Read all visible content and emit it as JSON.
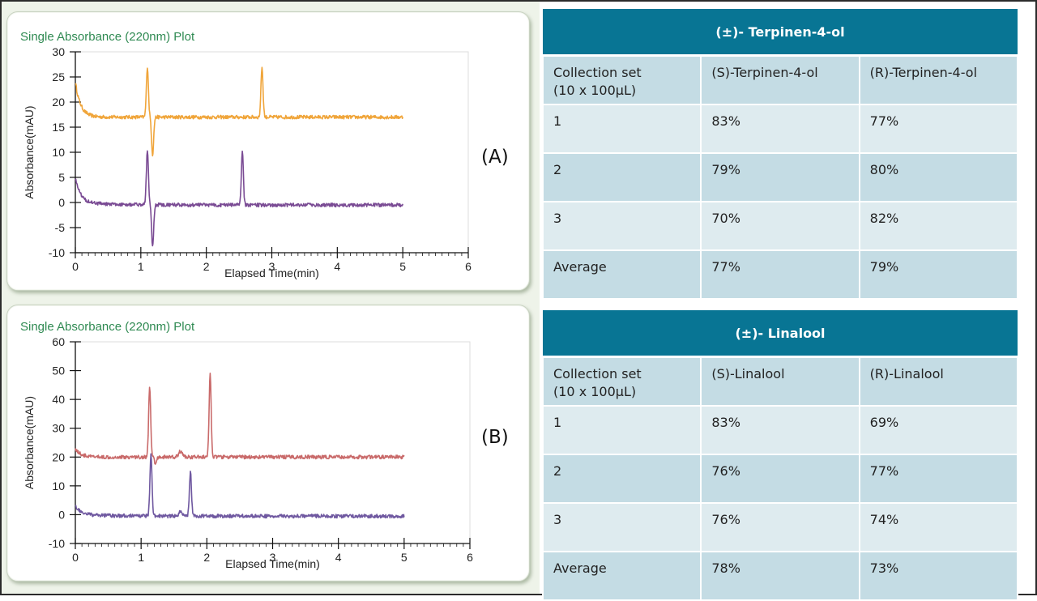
{
  "panels": [
    {
      "id": "A",
      "label": "(A)",
      "chart_title": "Single Absorbance (220nm) Plot"
    },
    {
      "id": "B",
      "label": "(B)",
      "chart_title": "Single Absorbance (220nm) Plot"
    }
  ],
  "chart_data": [
    {
      "type": "line",
      "title": "Single Absorbance (220nm) Plot",
      "xlabel": "Elapsed Time(min)",
      "ylabel": "Absorbance(mAU)",
      "xlim": [
        0,
        6
      ],
      "ylim": [
        -10,
        30
      ],
      "xticks": [
        0,
        1,
        2,
        3,
        4,
        5,
        6
      ],
      "yticks": [
        -10,
        -5,
        0,
        5,
        10,
        15,
        20,
        25,
        30
      ],
      "grid": false,
      "legend": "none",
      "series": [
        {
          "name": "trace-orange",
          "color": "#f0a53a",
          "baseline": 17,
          "start_value": 24,
          "decay_to": 17,
          "features": [
            {
              "type": "peak",
              "x": 1.1,
              "y": 27
            },
            {
              "type": "dip",
              "x": 1.18,
              "y": 9.5
            },
            {
              "type": "peak",
              "x": 2.85,
              "y": 27
            }
          ],
          "x_end": 5.0,
          "end_value": 17
        },
        {
          "name": "trace-purple",
          "color": "#7a4b94",
          "baseline": -0.5,
          "start_value": 5,
          "decay_to": 0,
          "features": [
            {
              "type": "peak",
              "x": 1.1,
              "y": 10.5
            },
            {
              "type": "dip",
              "x": 1.18,
              "y": -8.8
            },
            {
              "type": "peak",
              "x": 2.55,
              "y": 10
            }
          ],
          "x_end": 5.0,
          "end_value": -0.5
        }
      ]
    },
    {
      "type": "line",
      "title": "Single Absorbance (220nm) Plot",
      "xlabel": "Elapsed Time(min)",
      "ylabel": "Absorbance(mAU)",
      "xlim": [
        0,
        6
      ],
      "ylim": [
        -10,
        60
      ],
      "xticks": [
        0,
        1,
        2,
        3,
        4,
        5,
        6
      ],
      "yticks": [
        -10,
        0,
        10,
        20,
        30,
        40,
        50,
        60
      ],
      "grid": false,
      "legend": "none",
      "series": [
        {
          "name": "trace-red",
          "color": "#c96a6a",
          "baseline": 20,
          "start_value": 23,
          "decay_to": 20,
          "features": [
            {
              "type": "peak",
              "x": 1.13,
              "y": 44
            },
            {
              "type": "dip",
              "x": 1.22,
              "y": 17.5
            },
            {
              "type": "bump",
              "x": 1.6,
              "y": 22
            },
            {
              "type": "peak",
              "x": 2.05,
              "y": 48.5
            }
          ],
          "x_end": 5.0,
          "end_value": 20.5
        },
        {
          "name": "trace-blue-purple",
          "color": "#6f58a0",
          "baseline": -0.5,
          "start_value": 3,
          "decay_to": 0,
          "features": [
            {
              "type": "peak",
              "x": 1.15,
              "y": 21.5
            },
            {
              "type": "bump",
              "x": 1.6,
              "y": 1
            },
            {
              "type": "peak",
              "x": 1.75,
              "y": 15
            }
          ],
          "x_end": 5.0,
          "end_value": -0.5
        }
      ]
    }
  ],
  "tables": [
    {
      "title": "(±)- Terpinen-4-ol",
      "columns": [
        "Collection set\n(10 x 100µL)",
        "(S)-Terpinen-4-ol",
        "(R)-Terpinen-4-ol"
      ],
      "header_line1": "Collection set",
      "header_line2": "(10 x 100µL)",
      "rows": [
        [
          "1",
          "83%",
          "77%"
        ],
        [
          "2",
          "79%",
          "80%"
        ],
        [
          "3",
          "70%",
          "82%"
        ],
        [
          "Average",
          "77%",
          "79%"
        ]
      ]
    },
    {
      "title": "(±)- Linalool",
      "header_line1": "Collection set",
      "header_line2": "(10 x 100µL)",
      "columns": [
        "Collection set\n(10 x 100µL)",
        "(S)-Linalool",
        "(R)-Linalool"
      ],
      "rows": [
        [
          "1",
          "83%",
          "69%"
        ],
        [
          "2",
          "76%",
          "77%"
        ],
        [
          "3",
          "76%",
          "74%"
        ],
        [
          "Average",
          "78%",
          "73%"
        ]
      ]
    }
  ],
  "colors": {
    "table_header": "#087594",
    "row_dark": "#c4dce4",
    "row_light": "#deebef",
    "chart_title": "#2f8a52"
  }
}
